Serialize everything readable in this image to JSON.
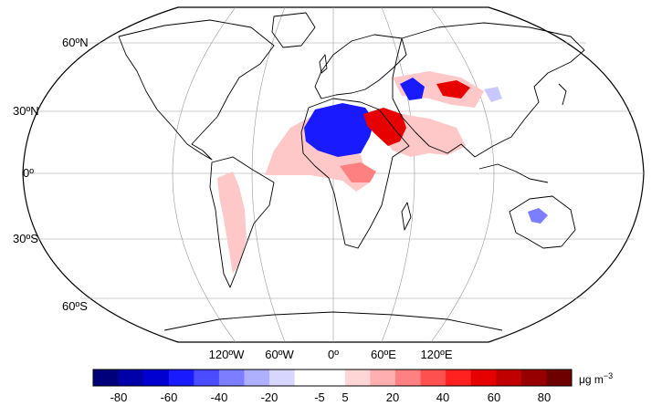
{
  "map": {
    "projection": "robinson",
    "lat_labels": [
      "60ºN",
      "30ºN",
      "0º",
      "30ºS",
      "60ºS"
    ],
    "lon_labels": [
      "120ºW",
      "60ºW",
      "0º",
      "60ºE",
      "120ºE"
    ]
  },
  "colorbar": {
    "tick_labels": [
      "-80",
      "-60",
      "-40",
      "-20",
      "-5",
      "5",
      "20",
      "40",
      "60",
      "80"
    ],
    "unit_prefix": "μg m",
    "unit_exp": "−3",
    "colors": [
      "#00007a",
      "#0000a8",
      "#0000d2",
      "#1a1aff",
      "#4b4bff",
      "#7d7dff",
      "#afafff",
      "#d6d6ff",
      "#ffffff",
      "#ffffff",
      "#ffd6d6",
      "#ffafaf",
      "#ff8080",
      "#ff5050",
      "#ff2020",
      "#e60000",
      "#c00000",
      "#960000",
      "#6e0000"
    ]
  },
  "anomaly_colors": {
    "strong_negative": "#1a1aff",
    "moderate_negative": "#7d7dff",
    "weak_negative": "#c8c8ff",
    "weak_positive": "#ffc8c8",
    "moderate_positive": "#ff8080",
    "strong_positive": "#e60000"
  }
}
